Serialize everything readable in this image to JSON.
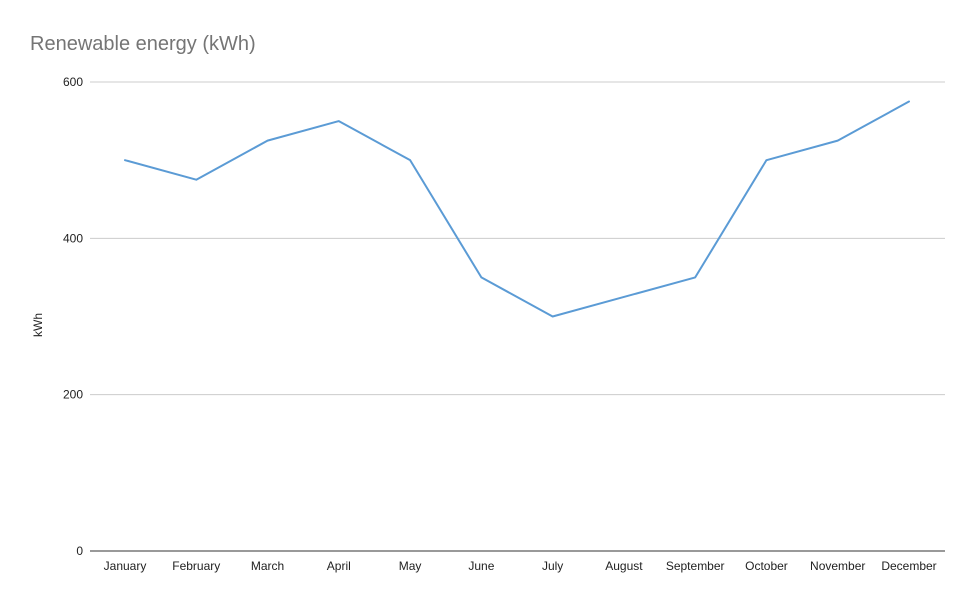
{
  "chart_data": {
    "type": "line",
    "title": "Renewable energy (kWh)",
    "xlabel": "",
    "ylabel": "kWh",
    "categories": [
      "January",
      "February",
      "March",
      "April",
      "May",
      "June",
      "July",
      "August",
      "September",
      "October",
      "November",
      "December"
    ],
    "series": [
      {
        "values": [
          500,
          475,
          525,
          550,
          500,
          350,
          300,
          325,
          350,
          500,
          525,
          575
        ]
      }
    ],
    "ylim": [
      0,
      600
    ],
    "yticks": [
      0,
      200,
      400,
      600
    ],
    "grid": true,
    "legend": "none"
  },
  "colors": {
    "series_line": "#5b9bd5",
    "gridline": "#cccccc",
    "axis": "#333333",
    "title": "#757575"
  }
}
